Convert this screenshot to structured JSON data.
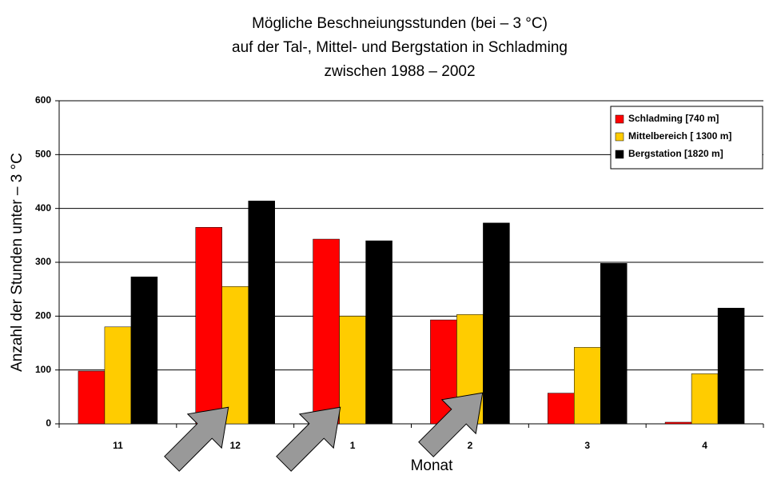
{
  "chart_data": {
    "type": "bar",
    "title": [
      "Mögliche Beschneiungsstunden (bei – 3 °C)",
      "auf der Tal-, Mittel- und Bergstation in Schladming",
      "zwischen 1988 – 2002"
    ],
    "xlabel": "Monat",
    "ylabel": "Anzahl der Stunden unter – 3 °C",
    "categories": [
      "11",
      "12",
      "1",
      "2",
      "3",
      "4"
    ],
    "series": [
      {
        "name": "Schladming [740 m]",
        "color": "#ff0000",
        "values": [
          98,
          365,
          343,
          193,
          57,
          3
        ]
      },
      {
        "name": "Mittelbereich [ 1300 m]",
        "color": "#ffcc00",
        "values": [
          180,
          255,
          200,
          203,
          142,
          93
        ]
      },
      {
        "name": "Bergstation [1820 m]",
        "color": "#000000",
        "values": [
          273,
          414,
          340,
          373,
          298,
          215
        ]
      }
    ],
    "ylim": [
      0,
      600
    ],
    "yticks": [
      0,
      100,
      200,
      300,
      400,
      500,
      600
    ],
    "grid": true,
    "legend": "upper right"
  }
}
